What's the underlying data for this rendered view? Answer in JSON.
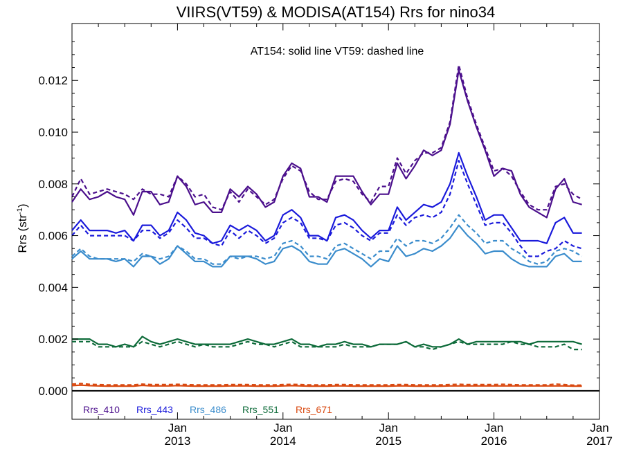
{
  "chart_data": {
    "type": "line",
    "title": "VIIRS(VT59) & MODISA(AT154)  Rrs for nino34",
    "ylabel": "Rrs (str",
    "ylabel_sup": "-1",
    "ylabel_close": ")",
    "annotation": "AT154: solid line    VT59: dashed line",
    "x_start": 2012.0,
    "x_step": 0.08333,
    "xlim": [
      2012.0,
      2017.0
    ],
    "ylim": [
      -0.0011,
      0.0142
    ],
    "yticks": [
      {
        "value": 0.0,
        "label": "0.000"
      },
      {
        "value": 0.002,
        "label": "0.002"
      },
      {
        "value": 0.004,
        "label": "0.004"
      },
      {
        "value": 0.006,
        "label": "0.006"
      },
      {
        "value": 0.008,
        "label": "0.008"
      },
      {
        "value": 0.01,
        "label": "0.010"
      },
      {
        "value": 0.012,
        "label": "0.012"
      }
    ],
    "xticks": [
      {
        "value": 2013.0,
        "month": "Jan",
        "year": "2013"
      },
      {
        "value": 2014.0,
        "month": "Jan",
        "year": "2014"
      },
      {
        "value": 2015.0,
        "month": "Jan",
        "year": "2015"
      },
      {
        "value": 2016.0,
        "month": "Jan",
        "year": "2016"
      },
      {
        "value": 2017.0,
        "month": "Jan",
        "year": "2017"
      }
    ],
    "zero_line": true,
    "grid": false,
    "legend_position": "bottom-left",
    "series": [
      {
        "name": "Rrs_410",
        "color": "#4b0f8c",
        "solid": [
          0.0073,
          0.0078,
          0.0074,
          0.0075,
          0.0077,
          0.0075,
          0.0074,
          0.0068,
          0.0077,
          0.0077,
          0.0072,
          0.0073,
          0.0083,
          0.0079,
          0.0072,
          0.0073,
          0.0069,
          0.0069,
          0.0078,
          0.0075,
          0.0079,
          0.0076,
          0.0071,
          0.0073,
          0.0083,
          0.0088,
          0.0086,
          0.0075,
          0.0075,
          0.0073,
          0.0083,
          0.0083,
          0.0083,
          0.0077,
          0.0072,
          0.0076,
          0.0076,
          0.0088,
          0.0082,
          0.0087,
          0.0093,
          0.0091,
          0.0093,
          0.0103,
          0.0124,
          0.0112,
          0.0102,
          0.0093,
          0.0083,
          0.0086,
          0.0085,
          0.0076,
          0.0071,
          0.0069,
          0.0067,
          0.0078,
          0.0082,
          0.0073,
          0.0072
        ],
        "dashed": [
          0.0075,
          0.0082,
          0.0076,
          0.0077,
          0.0078,
          0.0077,
          0.0076,
          0.0074,
          0.0078,
          0.0076,
          0.0076,
          0.0075,
          0.0083,
          0.008,
          0.0075,
          0.0076,
          0.0071,
          0.007,
          0.0077,
          0.0073,
          0.0078,
          0.0075,
          0.0072,
          0.0074,
          0.0082,
          0.0087,
          0.0085,
          0.0077,
          0.0074,
          0.0074,
          0.0081,
          0.0082,
          0.0081,
          0.0076,
          0.0073,
          0.0079,
          0.0079,
          0.009,
          0.0084,
          0.0089,
          0.0092,
          0.0092,
          0.0094,
          0.0104,
          0.0126,
          0.0113,
          0.0103,
          0.0094,
          0.0085,
          0.0086,
          0.0083,
          0.0077,
          0.0072,
          0.007,
          0.007,
          0.0079,
          0.008,
          0.0076,
          0.0074
        ]
      },
      {
        "name": "Rrs_443",
        "color": "#1a1adb",
        "solid": [
          0.0062,
          0.0066,
          0.0062,
          0.0062,
          0.0062,
          0.0061,
          0.0062,
          0.0058,
          0.0064,
          0.0064,
          0.006,
          0.0062,
          0.0069,
          0.0066,
          0.0061,
          0.006,
          0.0057,
          0.0058,
          0.0064,
          0.0062,
          0.0064,
          0.0062,
          0.0058,
          0.006,
          0.0068,
          0.007,
          0.0067,
          0.006,
          0.006,
          0.0058,
          0.0067,
          0.0068,
          0.0066,
          0.0062,
          0.0059,
          0.0062,
          0.0062,
          0.0071,
          0.0066,
          0.0069,
          0.0072,
          0.0071,
          0.0073,
          0.008,
          0.0092,
          0.0083,
          0.0075,
          0.0066,
          0.0068,
          0.0068,
          0.0063,
          0.0058,
          0.0058,
          0.0058,
          0.0057,
          0.0065,
          0.0067,
          0.0061,
          0.0061
        ],
        "dashed": [
          0.006,
          0.0064,
          0.006,
          0.006,
          0.006,
          0.006,
          0.006,
          0.0058,
          0.0062,
          0.0062,
          0.0059,
          0.0061,
          0.0066,
          0.0063,
          0.0059,
          0.0059,
          0.0057,
          0.0056,
          0.0062,
          0.0059,
          0.0062,
          0.006,
          0.0057,
          0.0059,
          0.0065,
          0.0067,
          0.0065,
          0.0059,
          0.0059,
          0.0058,
          0.0064,
          0.0065,
          0.0063,
          0.006,
          0.0058,
          0.0061,
          0.0061,
          0.0068,
          0.0064,
          0.0067,
          0.0068,
          0.0067,
          0.0069,
          0.0076,
          0.0089,
          0.008,
          0.0072,
          0.0064,
          0.0065,
          0.0065,
          0.0061,
          0.0056,
          0.0052,
          0.0052,
          0.0054,
          0.0055,
          0.0058,
          0.0056,
          0.0055
        ]
      },
      {
        "name": "Rrs_486",
        "color": "#3a8ccc",
        "solid": [
          0.0051,
          0.0054,
          0.0051,
          0.0051,
          0.0051,
          0.005,
          0.0051,
          0.0048,
          0.0052,
          0.0052,
          0.0049,
          0.0051,
          0.0056,
          0.0053,
          0.005,
          0.005,
          0.0048,
          0.0048,
          0.0052,
          0.0052,
          0.0052,
          0.0051,
          0.0049,
          0.005,
          0.0055,
          0.0056,
          0.0054,
          0.005,
          0.0049,
          0.0049,
          0.0054,
          0.0055,
          0.0053,
          0.0051,
          0.0048,
          0.0051,
          0.005,
          0.0056,
          0.0052,
          0.0053,
          0.0055,
          0.0054,
          0.0056,
          0.0059,
          0.0064,
          0.006,
          0.0057,
          0.0053,
          0.0054,
          0.0054,
          0.0051,
          0.0049,
          0.0048,
          0.0048,
          0.0048,
          0.0052,
          0.0053,
          0.005,
          0.005
        ],
        "dashed": [
          0.0052,
          0.0055,
          0.0052,
          0.0051,
          0.0051,
          0.0051,
          0.0051,
          0.005,
          0.0053,
          0.0052,
          0.0051,
          0.0052,
          0.0056,
          0.0054,
          0.0051,
          0.0051,
          0.0049,
          0.0049,
          0.0052,
          0.0051,
          0.0052,
          0.0052,
          0.0051,
          0.0052,
          0.0057,
          0.0058,
          0.0056,
          0.0052,
          0.0052,
          0.0051,
          0.0056,
          0.0057,
          0.0055,
          0.0053,
          0.0051,
          0.0054,
          0.0054,
          0.0059,
          0.0056,
          0.0058,
          0.0058,
          0.0057,
          0.0059,
          0.0063,
          0.0068,
          0.0064,
          0.0061,
          0.0057,
          0.0058,
          0.0058,
          0.0055,
          0.0053,
          0.005,
          0.0049,
          0.005,
          0.0054,
          0.0055,
          0.0054,
          0.0052
        ]
      },
      {
        "name": "Rrs_551",
        "color": "#0e6b3a",
        "solid": [
          0.002,
          0.002,
          0.002,
          0.0018,
          0.0018,
          0.0017,
          0.0018,
          0.0017,
          0.0021,
          0.0019,
          0.0018,
          0.0019,
          0.002,
          0.0019,
          0.0018,
          0.0018,
          0.0018,
          0.0018,
          0.0018,
          0.0019,
          0.002,
          0.0019,
          0.0018,
          0.0018,
          0.0019,
          0.002,
          0.0018,
          0.0018,
          0.0017,
          0.0018,
          0.0018,
          0.0019,
          0.0018,
          0.0018,
          0.0017,
          0.0018,
          0.0018,
          0.0018,
          0.0019,
          0.0017,
          0.0018,
          0.0017,
          0.0017,
          0.0018,
          0.002,
          0.0018,
          0.0019,
          0.0019,
          0.0019,
          0.0019,
          0.0019,
          0.0019,
          0.0018,
          0.0019,
          0.0019,
          0.0019,
          0.0019,
          0.0019,
          0.0018
        ],
        "dashed": [
          0.0019,
          0.0019,
          0.0019,
          0.0017,
          0.0017,
          0.0017,
          0.0017,
          0.0017,
          0.0019,
          0.0018,
          0.0017,
          0.0018,
          0.0019,
          0.0018,
          0.0017,
          0.0018,
          0.0017,
          0.0017,
          0.0017,
          0.0018,
          0.0019,
          0.0018,
          0.0018,
          0.0017,
          0.0018,
          0.0019,
          0.0017,
          0.0017,
          0.0017,
          0.0017,
          0.0017,
          0.0018,
          0.0017,
          0.0017,
          0.0017,
          0.0018,
          0.0018,
          0.0018,
          0.0019,
          0.0017,
          0.0017,
          0.0016,
          0.0017,
          0.0018,
          0.0019,
          0.0018,
          0.0018,
          0.0018,
          0.0018,
          0.0018,
          0.0019,
          0.0018,
          0.0018,
          0.0017,
          0.0017,
          0.0017,
          0.0018,
          0.0016,
          0.0016
        ]
      },
      {
        "name": "Rrs_671",
        "color": "#d9480f",
        "solid": [
          0.0002,
          0.00022,
          0.0002,
          0.00019,
          0.00018,
          0.00018,
          0.00018,
          0.00018,
          0.00021,
          0.00019,
          0.00019,
          0.00019,
          0.0002,
          0.00019,
          0.00018,
          0.00018,
          0.00018,
          0.00018,
          0.00019,
          0.00019,
          0.00019,
          0.00018,
          0.00018,
          0.00018,
          0.00019,
          0.0002,
          0.00019,
          0.00018,
          0.00018,
          0.00018,
          0.00019,
          0.00019,
          0.00018,
          0.00018,
          0.00018,
          0.00018,
          0.00018,
          0.00019,
          0.00019,
          0.00018,
          0.00018,
          0.00018,
          0.00018,
          0.00019,
          0.00019,
          0.00019,
          0.00019,
          0.00019,
          0.00019,
          0.00019,
          0.00019,
          0.00019,
          0.00019,
          0.00019,
          0.00019,
          0.00019,
          0.00019,
          0.00018,
          0.00018
        ],
        "dashed": [
          0.00026,
          0.00028,
          0.00025,
          0.00024,
          0.00023,
          0.00023,
          0.00023,
          0.00023,
          0.00026,
          0.00024,
          0.00024,
          0.00024,
          0.00025,
          0.00024,
          0.00023,
          0.00023,
          0.00023,
          0.00023,
          0.00024,
          0.00024,
          0.00024,
          0.00023,
          0.00023,
          0.00023,
          0.00024,
          0.00025,
          0.00024,
          0.00023,
          0.00023,
          0.00023,
          0.00024,
          0.00024,
          0.00023,
          0.00023,
          0.00023,
          0.00023,
          0.00023,
          0.00024,
          0.00024,
          0.00023,
          0.00023,
          0.00023,
          0.00023,
          0.00024,
          0.00025,
          0.00024,
          0.00024,
          0.00024,
          0.00024,
          0.00025,
          0.00024,
          0.00023,
          0.00023,
          0.00023,
          0.00023,
          0.00026,
          0.00024,
          0.00022,
          0.00022
        ]
      }
    ]
  }
}
